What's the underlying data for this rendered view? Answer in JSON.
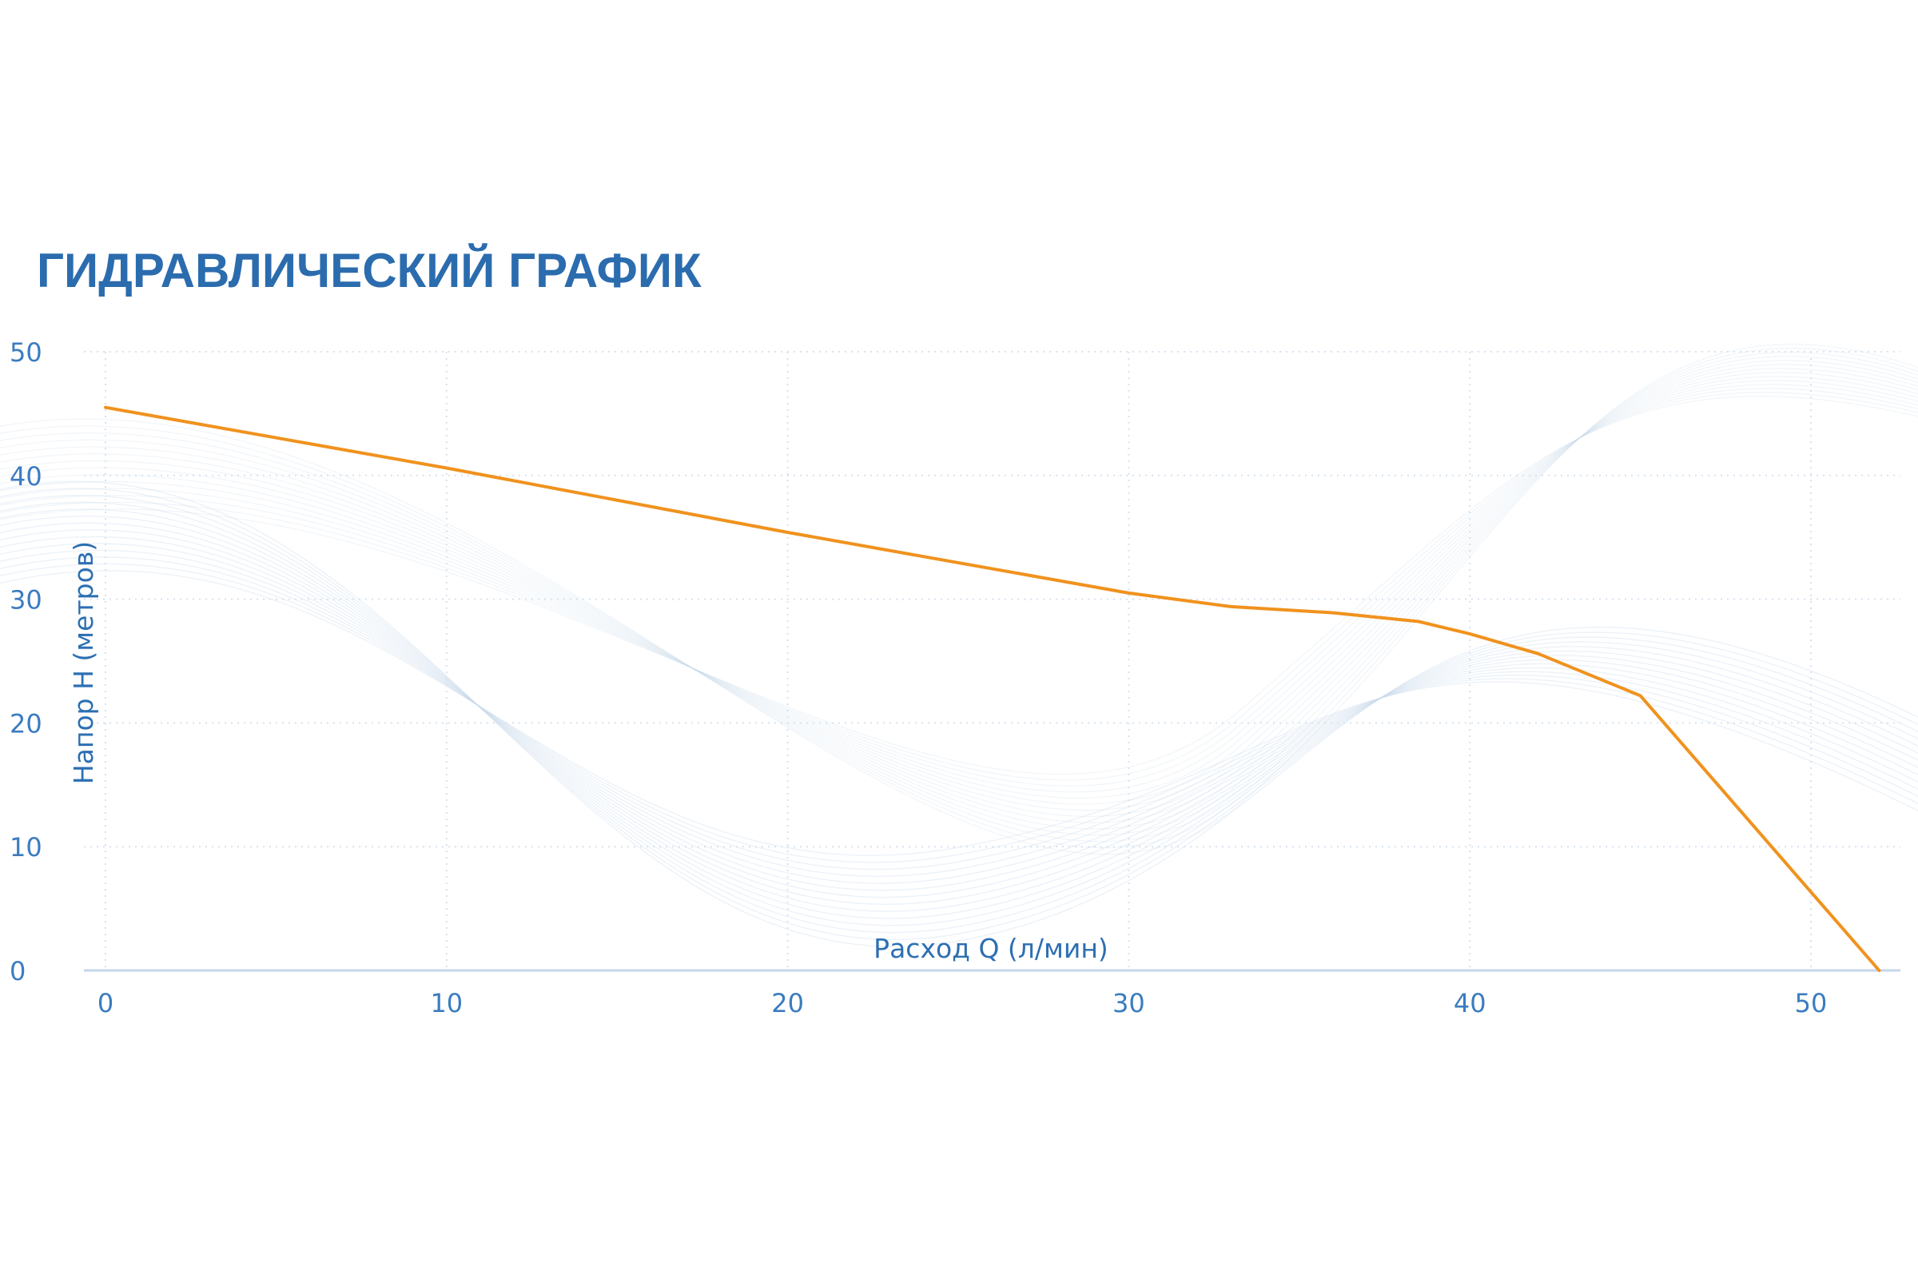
{
  "chart_data": {
    "type": "line",
    "title": "ГИДРАВЛИЧЕСКИЙ ГРАФИК",
    "xlabel": "Расход Q (л/мин)",
    "ylabel": "Напор Н (метров)",
    "xlim": [
      0,
      52
    ],
    "ylim": [
      0,
      50
    ],
    "x_ticks": [
      "0",
      "10",
      "20",
      "30",
      "40",
      "50"
    ],
    "y_ticks": [
      "0",
      "10",
      "20",
      "30",
      "40",
      "50"
    ],
    "grid": true,
    "grid_style": "dotted",
    "legend": "none",
    "series": [
      {
        "color": "#f0921e",
        "points": [
          {
            "x": 0,
            "y": 45.5
          },
          {
            "x": 10,
            "y": 40.6
          },
          {
            "x": 20,
            "y": 35.4
          },
          {
            "x": 30,
            "y": 30.5
          },
          {
            "x": 33,
            "y": 29.4
          },
          {
            "x": 36,
            "y": 28.9
          },
          {
            "x": 38.5,
            "y": 28.2
          },
          {
            "x": 40,
            "y": 27.2
          },
          {
            "x": 42,
            "y": 25.6
          },
          {
            "x": 45,
            "y": 22.2
          },
          {
            "x": 52,
            "y": 0
          }
        ]
      }
    ]
  },
  "colors": {
    "title": "#2b6cae",
    "tick_labels": "#3a7cc0",
    "axis_titles": "#2d6fb2",
    "grid": "#d7e2ee",
    "x_axis": "#c5d6e8",
    "decorative_waves": "#c9dbeb"
  }
}
